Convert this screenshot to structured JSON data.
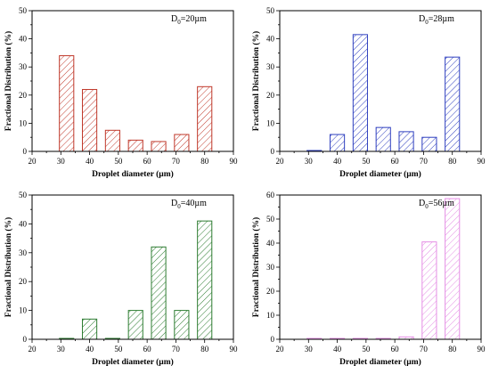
{
  "figure": {
    "chart_data": [
      {
        "type": "bar",
        "annotation": {
          "base": "D",
          "sub": "0",
          "rest": "=20µm"
        },
        "xlabel": "Droplet diameter (µm)",
        "ylabel": "Fractional Distribution (%)",
        "xlim": [
          20,
          90
        ],
        "ylim": [
          0,
          50
        ],
        "xticks": [
          "20",
          "30",
          "40",
          "50",
          "60",
          "70",
          "80",
          "90"
        ],
        "yticks": [
          "0",
          "10",
          "20",
          "30",
          "40",
          "50"
        ],
        "x": [
          32,
          40,
          48,
          56,
          64,
          72,
          80
        ],
        "values": [
          34,
          22,
          7.5,
          4,
          3.5,
          6,
          23
        ],
        "bar_width": 5,
        "color": "#c0392b",
        "grid": false
      },
      {
        "type": "bar",
        "annotation": {
          "base": "D",
          "sub": "0",
          "rest": "=28µm"
        },
        "xlabel": "Droplet diameter (µm)",
        "ylabel": "Fractional Distribution (%)",
        "xlim": [
          20,
          90
        ],
        "ylim": [
          0,
          50
        ],
        "xticks": [
          "20",
          "30",
          "40",
          "50",
          "60",
          "70",
          "80",
          "90"
        ],
        "yticks": [
          "0",
          "10",
          "20",
          "30",
          "40",
          "50"
        ],
        "x": [
          32,
          40,
          48,
          56,
          64,
          72,
          80
        ],
        "values": [
          0,
          6,
          41.5,
          8.5,
          7,
          5,
          33.5
        ],
        "bar_width": 5,
        "color": "#2e3fbf",
        "grid": false
      },
      {
        "type": "bar",
        "annotation": {
          "base": "D",
          "sub": "0",
          "rest": "=40µm"
        },
        "xlabel": "Droplet diameter (µm)",
        "ylabel": "Fractional Distribution (%)",
        "xlim": [
          20,
          90
        ],
        "ylim": [
          0,
          50
        ],
        "xticks": [
          "20",
          "30",
          "40",
          "50",
          "60",
          "70",
          "80",
          "90"
        ],
        "yticks": [
          "0",
          "10",
          "20",
          "30",
          "40",
          "50"
        ],
        "x": [
          32,
          40,
          48,
          56,
          64,
          72,
          80
        ],
        "values": [
          0,
          7,
          0,
          10,
          32,
          10,
          41
        ],
        "bar_width": 5,
        "color": "#2e7d32",
        "grid": false
      },
      {
        "type": "bar",
        "annotation": {
          "base": "D",
          "sub": "0",
          "rest": "=56µm"
        },
        "xlabel": "Droplet diameter (µm)",
        "ylabel": "Fractional Distribution (%)",
        "xlim": [
          20,
          90
        ],
        "ylim": [
          0,
          60
        ],
        "xticks": [
          "20",
          "30",
          "40",
          "50",
          "60",
          "70",
          "80",
          "90"
        ],
        "yticks": [
          "0",
          "10",
          "20",
          "30",
          "40",
          "50",
          "60"
        ],
        "x": [
          32,
          40,
          48,
          56,
          64,
          72,
          80
        ],
        "values": [
          0,
          0,
          0,
          0,
          1,
          40.5,
          58.5
        ],
        "bar_width": 5,
        "color": "#e58ee5",
        "grid": false
      }
    ]
  }
}
